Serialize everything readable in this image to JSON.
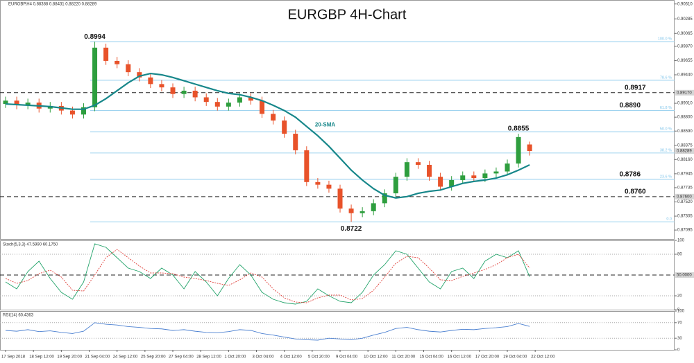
{
  "chart_data": [
    {
      "type": "candlestick",
      "title": "EURGBP 4H-Chart",
      "header": "EURGBP,H4  0.88388 0.88431 0.88220 0.88289",
      "xlim": [
        -0.5,
        60
      ],
      "ylim": [
        0.8696,
        0.9057
      ],
      "yticks": [
        {
          "value": 0.9051,
          "label": "0.90510"
        },
        {
          "value": 0.90285,
          "label": "0.90285"
        },
        {
          "value": 0.90065,
          "label": "0.90065"
        },
        {
          "value": 0.8987,
          "label": "0.89870"
        },
        {
          "value": 0.89655,
          "label": "0.89655"
        },
        {
          "value": 0.8944,
          "label": "0.89440"
        },
        {
          "value": 0.8901,
          "label": "0.89010"
        },
        {
          "value": 0.888,
          "label": "0.88800"
        },
        {
          "value": 0.8859,
          "label": "0.88590"
        },
        {
          "value": 0.88375,
          "label": "0.88375"
        },
        {
          "value": 0.8816,
          "label": "0.88160"
        },
        {
          "value": 0.87945,
          "label": "0.87945"
        },
        {
          "value": 0.87735,
          "label": "0.87735"
        },
        {
          "value": 0.8752,
          "label": "0.87520"
        },
        {
          "value": 0.87305,
          "label": "0.87305"
        },
        {
          "value": 0.87095,
          "label": "0.87095"
        }
      ],
      "up_color": "#2e9e3e",
      "down_color": "#e8522a",
      "open": [
        0.89,
        0.8905,
        0.8898,
        0.8902,
        0.8893,
        0.8897,
        0.889,
        0.8884,
        0.8895,
        0.8985,
        0.8965,
        0.896,
        0.8948,
        0.894,
        0.893,
        0.8925,
        0.8915,
        0.892,
        0.891,
        0.8903,
        0.8896,
        0.8902,
        0.891,
        0.8905,
        0.8885,
        0.8875,
        0.8855,
        0.883,
        0.8782,
        0.8778,
        0.8772,
        0.8742,
        0.8735,
        0.8738,
        0.875,
        0.8765,
        0.879,
        0.8812,
        0.8808,
        0.879,
        0.8775,
        0.8785,
        0.8792,
        0.8788,
        0.8795,
        0.8798,
        0.881,
        0.88388
      ],
      "high": [
        0.8911,
        0.8911,
        0.8908,
        0.8908,
        0.8903,
        0.8903,
        0.8896,
        0.8901,
        0.8994,
        0.8991,
        0.8971,
        0.8966,
        0.8954,
        0.8946,
        0.8936,
        0.8931,
        0.8926,
        0.8926,
        0.8916,
        0.8909,
        0.8908,
        0.8916,
        0.8916,
        0.8911,
        0.8891,
        0.8881,
        0.8861,
        0.8836,
        0.8788,
        0.8784,
        0.8778,
        0.8748,
        0.8744,
        0.8756,
        0.8771,
        0.8796,
        0.8818,
        0.8818,
        0.8814,
        0.8796,
        0.8791,
        0.8798,
        0.8798,
        0.8801,
        0.8804,
        0.8816,
        0.8855,
        0.88431
      ],
      "low": [
        0.8894,
        0.8892,
        0.8892,
        0.8887,
        0.8887,
        0.8884,
        0.8878,
        0.8878,
        0.8889,
        0.8959,
        0.8954,
        0.8942,
        0.8934,
        0.8924,
        0.8919,
        0.8909,
        0.8909,
        0.8904,
        0.8897,
        0.889,
        0.889,
        0.8896,
        0.8899,
        0.8879,
        0.8869,
        0.8849,
        0.8824,
        0.8776,
        0.8772,
        0.8766,
        0.8736,
        0.8722,
        0.8729,
        0.8732,
        0.8744,
        0.8759,
        0.8784,
        0.8802,
        0.8784,
        0.8769,
        0.8769,
        0.8779,
        0.8782,
        0.8782,
        0.8789,
        0.8792,
        0.8804,
        0.8822
      ],
      "close": [
        0.8905,
        0.8898,
        0.8902,
        0.8893,
        0.8897,
        0.889,
        0.8884,
        0.8895,
        0.8985,
        0.8965,
        0.896,
        0.8948,
        0.894,
        0.893,
        0.8925,
        0.8915,
        0.892,
        0.891,
        0.8903,
        0.8896,
        0.8902,
        0.891,
        0.8905,
        0.8885,
        0.8875,
        0.8855,
        0.883,
        0.8782,
        0.8778,
        0.8772,
        0.8742,
        0.8735,
        0.8738,
        0.875,
        0.8765,
        0.879,
        0.8812,
        0.8808,
        0.879,
        0.8775,
        0.8785,
        0.8792,
        0.8788,
        0.8795,
        0.8798,
        0.881,
        0.885,
        0.88289
      ],
      "sma": {
        "name": "20-SMA",
        "color": "#17878a",
        "values": [
          0.89,
          0.8899,
          0.8898,
          0.8897,
          0.8896,
          0.8894,
          0.8892,
          0.8892,
          0.8898,
          0.8908,
          0.892,
          0.8932,
          0.8942,
          0.8946,
          0.8944,
          0.894,
          0.8935,
          0.893,
          0.8925,
          0.892,
          0.8916,
          0.8914,
          0.891,
          0.8905,
          0.8898,
          0.889,
          0.888,
          0.8866,
          0.8852,
          0.8836,
          0.8818,
          0.88,
          0.8785,
          0.8772,
          0.8762,
          0.8758,
          0.876,
          0.8765,
          0.8768,
          0.877,
          0.8775,
          0.878,
          0.8783,
          0.8785,
          0.8788,
          0.8793,
          0.88,
          0.8808
        ]
      },
      "fib_color": "#7fc4ea",
      "fib_levels": [
        {
          "name": "100.0 %",
          "value": 0.8994
        },
        {
          "name": "78.6 %",
          "value": 0.89358
        },
        {
          "name": "61.8 %",
          "value": 0.88901
        },
        {
          "name": "50.0 %",
          "value": 0.8858
        },
        {
          "name": "38.2 %",
          "value": 0.88259
        },
        {
          "name": "23.6 %",
          "value": 0.87862
        },
        {
          "name": "0.0",
          "value": 0.8722
        }
      ],
      "levels": [
        {
          "name": "0.8917",
          "axis_label": "0.89170",
          "value": 0.8917
        },
        {
          "name": "0.8760",
          "axis_label": "0.87600",
          "value": 0.876
        }
      ],
      "annotations": [
        {
          "name": "0.8994",
          "value": 0.8994,
          "x": 8
        },
        {
          "name": "0.8890",
          "value": 0.889,
          "x": 56
        },
        {
          "name": "0.8855",
          "value": 0.8855,
          "x": 46
        },
        {
          "name": "0.8786",
          "value": 0.8786,
          "x": 56
        },
        {
          "name": "0.8722",
          "value": 0.8722,
          "x": 31
        }
      ],
      "last_price": {
        "value": 0.88289,
        "label": "0.88289"
      }
    },
    {
      "type": "line",
      "title": "Stoch(5,3,3) 47.5990 60.1750",
      "xlim": [
        -0.5,
        60
      ],
      "ylim": [
        0,
        100
      ],
      "yticks": [
        100,
        80,
        20,
        0
      ],
      "levels": [
        {
          "axis_label": "50.0000",
          "value": 50
        }
      ],
      "series": [
        {
          "color": "#22a36a",
          "values": [
            40,
            30,
            55,
            70,
            45,
            25,
            15,
            40,
            95,
            90,
            75,
            60,
            55,
            45,
            60,
            50,
            30,
            55,
            40,
            20,
            45,
            65,
            50,
            25,
            15,
            10,
            8,
            12,
            30,
            20,
            12,
            10,
            25,
            50,
            65,
            85,
            80,
            60,
            40,
            30,
            55,
            60,
            45,
            70,
            80,
            75,
            85,
            47.599
          ]
        },
        {
          "color": "#e0403a",
          "dashed": true,
          "values": [
            45,
            38,
            42,
            52,
            57,
            47,
            28,
            27,
            50,
            75,
            87,
            75,
            63,
            53,
            53,
            52,
            47,
            45,
            42,
            38,
            35,
            43,
            53,
            47,
            30,
            17,
            11,
            10,
            17,
            21,
            21,
            14,
            16,
            28,
            47,
            67,
            77,
            75,
            60,
            43,
            42,
            48,
            53,
            58,
            65,
            75,
            80,
            60.175
          ]
        }
      ]
    },
    {
      "type": "line",
      "title": "RSI(14) 60.4363",
      "xlim": [
        -0.5,
        60
      ],
      "ylim": [
        0,
        100
      ],
      "yticks": [
        100,
        70,
        30,
        0
      ],
      "series": [
        {
          "color": "#4a7fd0",
          "values": [
            50,
            48,
            52,
            47,
            49,
            45,
            42,
            48,
            70,
            66,
            64,
            60,
            58,
            55,
            54,
            50,
            52,
            48,
            45,
            44,
            47,
            52,
            50,
            42,
            38,
            33,
            28,
            26,
            25,
            30,
            28,
            26,
            30,
            38,
            45,
            55,
            58,
            52,
            48,
            46,
            50,
            53,
            52,
            55,
            57,
            60,
            68,
            60.4363
          ]
        }
      ],
      "xticks": [
        {
          "value": 0,
          "label": "17 Sep 2018"
        },
        {
          "value": 2.5,
          "label": "18 Sep 12:00"
        },
        {
          "value": 5,
          "label": "19 Sep 20:00"
        },
        {
          "value": 7.5,
          "label": "21 Sep 04:00"
        },
        {
          "value": 10,
          "label": "24 Sep 12:00"
        },
        {
          "value": 12.5,
          "label": "25 Sep 20:00"
        },
        {
          "value": 15,
          "label": "27 Sep 04:00"
        },
        {
          "value": 17.5,
          "label": "28 Sep 12:00"
        },
        {
          "value": 20,
          "label": "1 Oct 20:00"
        },
        {
          "value": 22.5,
          "label": "3 Oct 04:00"
        },
        {
          "value": 25,
          "label": "4 Oct 12:00"
        },
        {
          "value": 27.5,
          "label": "5 Oct 20:00"
        },
        {
          "value": 30,
          "label": "9 Oct 04:00"
        },
        {
          "value": 32.5,
          "label": "10 Oct 12:00"
        },
        {
          "value": 35,
          "label": "11 Oct 20:00"
        },
        {
          "value": 37.5,
          "label": "15 Oct 04:00"
        },
        {
          "value": 40,
          "label": "16 Oct 12:00"
        },
        {
          "value": 42.5,
          "label": "17 Oct 20:00"
        },
        {
          "value": 45,
          "label": "19 Oct 04:00"
        },
        {
          "value": 47.5,
          "label": "22 Oct 12:00"
        }
      ]
    }
  ]
}
